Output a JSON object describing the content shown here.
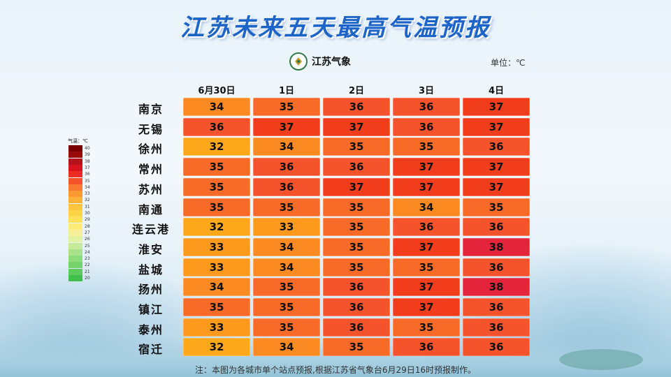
{
  "title": "江苏未来五天最高气温预报",
  "logo_text": "江苏气象",
  "unit": "单位：℃",
  "note": "注：本图为各城市单个站点预报,根据江苏省气象台6月29日16时预报制作。",
  "legend": {
    "title": "气温：℃",
    "levels": [
      {
        "value": "40",
        "color": "#7a0000"
      },
      {
        "value": "39",
        "color": "#990a0a"
      },
      {
        "value": "38",
        "color": "#b5121b"
      },
      {
        "value": "37",
        "color": "#d9141e"
      },
      {
        "value": "36",
        "color": "#ec2d23"
      },
      {
        "value": "35",
        "color": "#f5532b"
      },
      {
        "value": "34",
        "color": "#f97a30"
      },
      {
        "value": "33",
        "color": "#fb9a33"
      },
      {
        "value": "32",
        "color": "#fdb237"
      },
      {
        "value": "31",
        "color": "#fec43d"
      },
      {
        "value": "30",
        "color": "#ffd346"
      },
      {
        "value": "29",
        "color": "#ffe15a"
      },
      {
        "value": "28",
        "color": "#ffec78"
      },
      {
        "value": "27",
        "color": "#f6f09a"
      },
      {
        "value": "26",
        "color": "#e0f1a0"
      },
      {
        "value": "25",
        "color": "#c5eb9a"
      },
      {
        "value": "24",
        "color": "#a8e38c"
      },
      {
        "value": "23",
        "color": "#8fdc7c"
      },
      {
        "value": "22",
        "color": "#76d36b"
      },
      {
        "value": "21",
        "color": "#5dca5c"
      },
      {
        "value": "20",
        "color": "#3fbf4d"
      }
    ]
  },
  "cell_colors": {
    "32": "#fda81b",
    "33": "#fd9a1e",
    "34": "#fb8a22",
    "35": "#f76a28",
    "36": "#f4532c",
    "37": "#f23d1c",
    "38": "#e3243b"
  },
  "chart_data": {
    "type": "table",
    "title": "江苏未来五天最高气温预报",
    "unit": "℃",
    "columns": [
      "6月30日",
      "1日",
      "2日",
      "3日",
      "4日"
    ],
    "rows": [
      {
        "city": "南京",
        "values": [
          34,
          35,
          36,
          36,
          37
        ]
      },
      {
        "city": "无锡",
        "values": [
          36,
          37,
          37,
          36,
          37
        ]
      },
      {
        "city": "徐州",
        "values": [
          32,
          34,
          35,
          35,
          36
        ]
      },
      {
        "city": "常州",
        "values": [
          35,
          36,
          36,
          37,
          37
        ]
      },
      {
        "city": "苏州",
        "values": [
          35,
          36,
          37,
          37,
          37
        ]
      },
      {
        "city": "南通",
        "values": [
          35,
          35,
          35,
          34,
          35
        ]
      },
      {
        "city": "连云港",
        "values": [
          32,
          33,
          35,
          36,
          36
        ]
      },
      {
        "city": "淮安",
        "values": [
          33,
          34,
          35,
          37,
          38
        ]
      },
      {
        "city": "盐城",
        "values": [
          33,
          34,
          35,
          35,
          36
        ]
      },
      {
        "city": "扬州",
        "values": [
          34,
          35,
          36,
          37,
          38
        ]
      },
      {
        "city": "镇江",
        "values": [
          35,
          35,
          36,
          37,
          36
        ]
      },
      {
        "city": "泰州",
        "values": [
          33,
          35,
          36,
          35,
          36
        ]
      },
      {
        "city": "宿迁",
        "values": [
          32,
          34,
          35,
          36,
          36
        ]
      }
    ]
  }
}
